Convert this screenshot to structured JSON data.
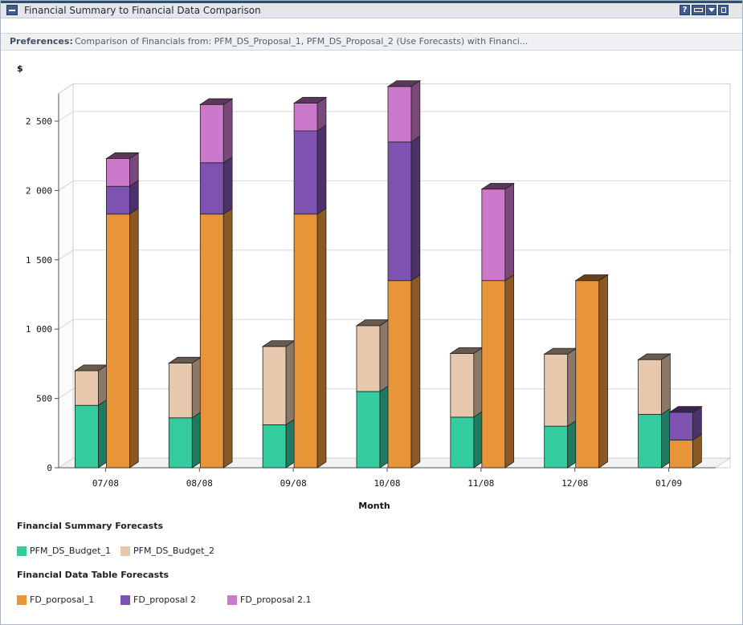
{
  "titlebar": {
    "title": "Financial Summary to Financial Data Comparison",
    "help_icon": "help-icon",
    "window_icon": "window-icon",
    "menu_icon": "dropdown-icon",
    "maximize_icon": "maximize-icon"
  },
  "preferences": {
    "label": "Preferences:",
    "text": "Comparison of Financials from: PFM_DS_Proposal_1, PFM_DS_Proposal_2 (Use Forecasts) with Financi..."
  },
  "chart_data": {
    "type": "bar",
    "subtype": "stacked-3d-grouped",
    "ylabel": "$",
    "xlabel": "Month",
    "ylim": [
      0,
      2700
    ],
    "yticks": [
      0,
      500,
      1000,
      1500,
      2000,
      2500
    ],
    "ytick_labels": [
      "0",
      "500",
      "1 000",
      "1 500",
      "2 000",
      "2 500"
    ],
    "grid": true,
    "categories": [
      "07/08",
      "08/08",
      "09/08",
      "10/08",
      "11/08",
      "12/08",
      "01/09"
    ],
    "groups": [
      {
        "name": "Financial Summary Forecasts",
        "series": [
          {
            "name": "PFM_DS_Budget_1",
            "color": "#33cc9f",
            "values": [
              450,
              360,
              310,
              550,
              365,
              300,
              385
            ]
          },
          {
            "name": "PFM_DS_Budget_2",
            "color": "#e8c8ac",
            "values": [
              250,
              395,
              565,
              475,
              460,
              520,
              395
            ]
          }
        ]
      },
      {
        "name": "Financial Data Table Forecasts",
        "series": [
          {
            "name": "FD_porposal_1",
            "color": "#e8953a",
            "values": [
              1830,
              1830,
              1830,
              1350,
              1350,
              1350,
              200
            ]
          },
          {
            "name": "FD_proposal 2",
            "color": "#7e52b0",
            "values": [
              200,
              370,
              600,
              1000,
              0,
              0,
              200
            ]
          },
          {
            "name": "FD_proposal 2.1",
            "color": "#cc79cc",
            "values": [
              200,
              420,
              200,
              400,
              660,
              0,
              0
            ]
          }
        ]
      }
    ]
  }
}
